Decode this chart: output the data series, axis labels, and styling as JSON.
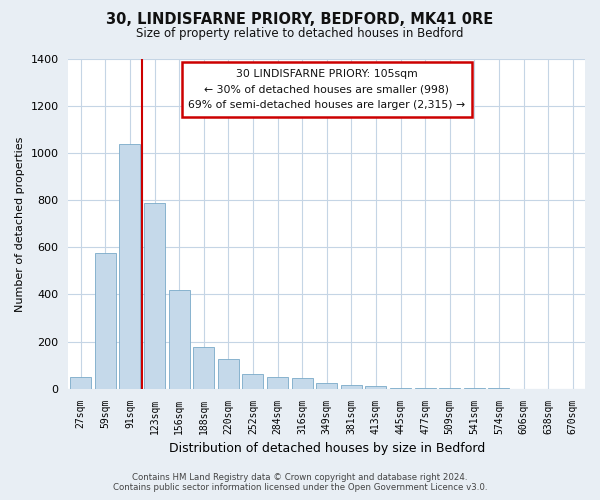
{
  "title": "30, LINDISFARNE PRIORY, BEDFORD, MK41 0RE",
  "subtitle": "Size of property relative to detached houses in Bedford",
  "xlabel": "Distribution of detached houses by size in Bedford",
  "ylabel": "Number of detached properties",
  "bar_color": "#c5d9ea",
  "bar_edge_color": "#7aaac8",
  "marker_color": "#cc0000",
  "tick_labels": [
    "27sqm",
    "59sqm",
    "91sqm",
    "123sqm",
    "156sqm",
    "188sqm",
    "220sqm",
    "252sqm",
    "284sqm",
    "316sqm",
    "349sqm",
    "381sqm",
    "413sqm",
    "445sqm",
    "477sqm",
    "509sqm",
    "541sqm",
    "574sqm",
    "606sqm",
    "638sqm",
    "670sqm"
  ],
  "bar_heights": [
    50,
    575,
    1040,
    790,
    420,
    178,
    125,
    62,
    50,
    47,
    25,
    15,
    10,
    5,
    3,
    2,
    1,
    1,
    0,
    0,
    0
  ],
  "ylim": [
    0,
    1400
  ],
  "yticks": [
    0,
    200,
    400,
    600,
    800,
    1000,
    1200,
    1400
  ],
  "annotation_lines": [
    "30 LINDISFARNE PRIORY: 105sqm",
    "← 30% of detached houses are smaller (998)",
    "69% of semi-detached houses are larger (2,315) →"
  ],
  "footer_line1": "Contains HM Land Registry data © Crown copyright and database right 2024.",
  "footer_line2": "Contains public sector information licensed under the Open Government Licence v3.0.",
  "background_color": "#e8eef4",
  "plot_bg_color": "#ffffff",
  "grid_color": "#c5d5e5",
  "ann_box_color": "#cc0000",
  "marker_bar_idx": 2
}
